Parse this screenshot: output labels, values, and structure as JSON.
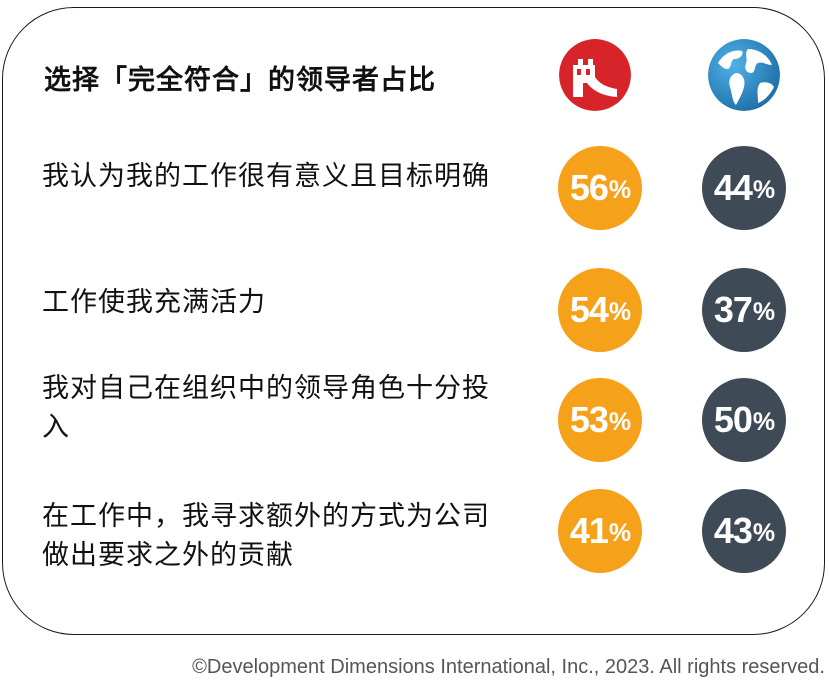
{
  "title": "选择「完全符合」的领导者占比",
  "icons": {
    "china": "great-wall-icon",
    "global": "globe-icon"
  },
  "colors": {
    "china": "#F6A11A",
    "global": "#3E4A56",
    "china_icon_bg": "#D7242B",
    "globe_icon_bg": "#2C8BC9"
  },
  "percent_sign": "%",
  "chart_data": {
    "type": "table",
    "title": "选择「完全符合」的领导者占比",
    "series": [
      {
        "key": "china",
        "values": [
          56,
          54,
          53,
          41
        ]
      },
      {
        "key": "global",
        "values": [
          44,
          37,
          50,
          43
        ]
      }
    ],
    "rows": [
      {
        "label": "我认为我的工作很有意义且目标明确",
        "china": 56,
        "global": 44
      },
      {
        "label": "工作使我充满活力",
        "china": 54,
        "global": 37
      },
      {
        "label": "我对自己在组织中的领导角色十分投入",
        "china": 53,
        "global": 50
      },
      {
        "label": "在工作中，我寻求额外的方式为公司做出要求之外的贡献",
        "china": 41,
        "global": 43
      }
    ]
  },
  "footer": "©Development Dimensions International, Inc., 2023. All rights reserved."
}
